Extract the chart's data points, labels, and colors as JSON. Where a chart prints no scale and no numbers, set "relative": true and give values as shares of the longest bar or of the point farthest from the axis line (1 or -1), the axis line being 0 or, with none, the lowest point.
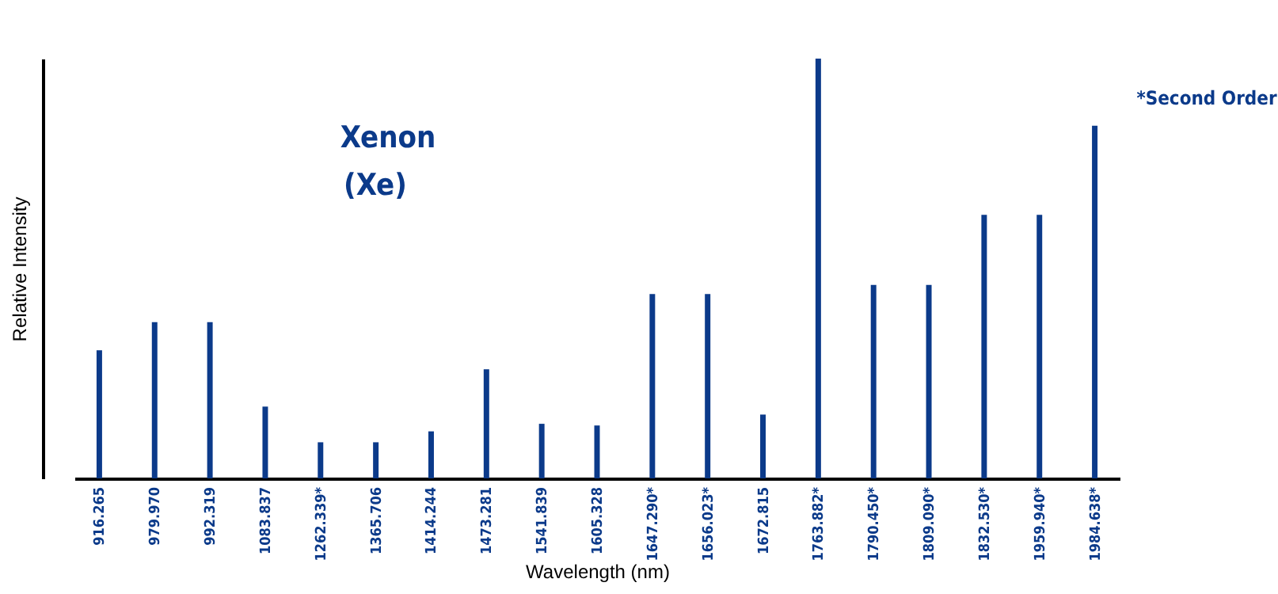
{
  "chart_data": {
    "type": "bar",
    "relative": true,
    "xlabel": "Wavelength (nm)",
    "ylabel": "Relative  Intensity",
    "categories": [
      "916.265",
      "979.970",
      "992.319",
      "1083.837",
      "1262.339*",
      "1365.706",
      "1414.244",
      "1473.281",
      "1541.839",
      "1605.328",
      "1647.290*",
      "1656.023*",
      "1672.815",
      "1763.882*",
      "1790.450*",
      "1809.090*",
      "1832.530*",
      "1959.940*",
      "1984.638*"
    ],
    "values": [
      0.305,
      0.372,
      0.372,
      0.171,
      0.086,
      0.086,
      0.112,
      0.26,
      0.13,
      0.126,
      0.439,
      0.439,
      0.152,
      1,
      0.461,
      0.461,
      0.628,
      0.628,
      0.84
    ],
    "color": "#0b3a8a",
    "annotations": [
      "Xenon",
      "(Xe)",
      "*Second Order"
    ],
    "grid": false
  }
}
